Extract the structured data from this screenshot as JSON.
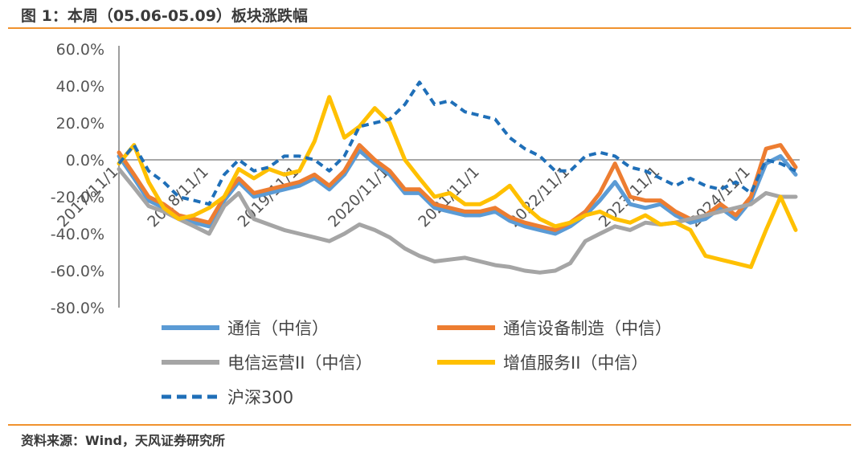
{
  "figure": {
    "title": "图 1：本周（05.06-05.09）板块涨跌幅",
    "source": "资料来源：Wind，天风证券研究所"
  },
  "chart_data": {
    "type": "line",
    "x_tick_labels": [
      "2017/11/1",
      "2018/11/1",
      "2019/11/1",
      "2020/11/1",
      "2021/11/1",
      "2022/11/1",
      "2023/11/1",
      "2024/11/1"
    ],
    "ylim": [
      -80,
      60
    ],
    "y_ticks": [
      60,
      40,
      20,
      0,
      -20,
      -40,
      -60,
      -80
    ],
    "y_tick_format": "percent_1dp",
    "grid": false,
    "zero_line": true,
    "legend_position": "bottom",
    "x": [
      "2017-11-01",
      "2018-01-01",
      "2018-03-01",
      "2018-05-01",
      "2018-07-01",
      "2018-09-01",
      "2018-11-01",
      "2019-01-01",
      "2019-03-01",
      "2019-05-01",
      "2019-07-01",
      "2019-09-01",
      "2019-11-01",
      "2020-01-01",
      "2020-03-01",
      "2020-05-01",
      "2020-07-01",
      "2020-09-01",
      "2020-11-01",
      "2021-01-01",
      "2021-03-01",
      "2021-05-01",
      "2021-07-01",
      "2021-09-01",
      "2021-11-01",
      "2022-01-01",
      "2022-03-01",
      "2022-05-01",
      "2022-07-01",
      "2022-09-01",
      "2022-11-01",
      "2023-01-01",
      "2023-03-01",
      "2023-05-01",
      "2023-07-01",
      "2023-09-01",
      "2023-11-01",
      "2024-01-01",
      "2024-03-01",
      "2024-05-01",
      "2024-07-01",
      "2024-09-01",
      "2024-11-01",
      "2025-01-01",
      "2025-03-01",
      "2025-05-01"
    ],
    "series": [
      {
        "name": "通信（中信）",
        "color": "#5b9bd5",
        "width": 5,
        "dash": false,
        "values": [
          2,
          -10,
          -22,
          -26,
          -32,
          -34,
          -36,
          -22,
          -12,
          -20,
          -18,
          -16,
          -14,
          -10,
          -16,
          -8,
          5,
          -2,
          -8,
          -18,
          -18,
          -26,
          -28,
          -30,
          -30,
          -28,
          -33,
          -36,
          -38,
          -40,
          -36,
          -30,
          -22,
          -12,
          -24,
          -26,
          -24,
          -30,
          -34,
          -32,
          -26,
          -32,
          -22,
          -2,
          2,
          -8
        ]
      },
      {
        "name": "通信设备制造（中信）",
        "color": "#ed7d31",
        "width": 5,
        "dash": false,
        "values": [
          4,
          -8,
          -20,
          -24,
          -30,
          -32,
          -34,
          -20,
          -10,
          -18,
          -16,
          -14,
          -12,
          -8,
          -14,
          -6,
          8,
          0,
          -6,
          -16,
          -16,
          -24,
          -26,
          -28,
          -28,
          -26,
          -31,
          -34,
          -36,
          -38,
          -34,
          -28,
          -18,
          -2,
          -20,
          -22,
          -22,
          -28,
          -32,
          -30,
          -24,
          -30,
          -20,
          6,
          8,
          -4
        ]
      },
      {
        "name": "电信运营II（中信）",
        "color": "#a5a5a5",
        "width": 5,
        "dash": false,
        "values": [
          -5,
          -15,
          -25,
          -28,
          -32,
          -36,
          -40,
          -25,
          -18,
          -32,
          -35,
          -38,
          -40,
          -42,
          -44,
          -40,
          -35,
          -38,
          -42,
          -48,
          -52,
          -55,
          -54,
          -53,
          -55,
          -57,
          -58,
          -60,
          -61,
          -60,
          -56,
          -44,
          -40,
          -36,
          -38,
          -34,
          -35,
          -34,
          -32,
          -30,
          -28,
          -26,
          -24,
          -18,
          -20,
          -20
        ]
      },
      {
        "name": "增值服务II（中信）",
        "color": "#ffc000",
        "width": 5,
        "dash": false,
        "values": [
          -2,
          8,
          -12,
          -26,
          -32,
          -30,
          -26,
          -20,
          -5,
          -10,
          -5,
          -8,
          -6,
          10,
          34,
          12,
          18,
          28,
          20,
          0,
          -10,
          -20,
          -18,
          -24,
          -24,
          -20,
          -14,
          -25,
          -32,
          -36,
          -34,
          -30,
          -28,
          -32,
          -34,
          -30,
          -35,
          -34,
          -38,
          -52,
          -54,
          -56,
          -58,
          -38,
          -20,
          -38
        ]
      },
      {
        "name": "沪深300",
        "color": "#1f6fb8",
        "width": 4,
        "dash": true,
        "values": [
          -2,
          8,
          -6,
          -12,
          -20,
          -22,
          -24,
          -8,
          0,
          -6,
          -4,
          2,
          2,
          0,
          -6,
          2,
          18,
          20,
          22,
          30,
          42,
          30,
          32,
          26,
          24,
          22,
          12,
          6,
          2,
          -6,
          -6,
          2,
          4,
          2,
          -4,
          -6,
          -10,
          -14,
          -10,
          -14,
          -16,
          -12,
          -18,
          0,
          -2,
          -6
        ]
      }
    ]
  }
}
